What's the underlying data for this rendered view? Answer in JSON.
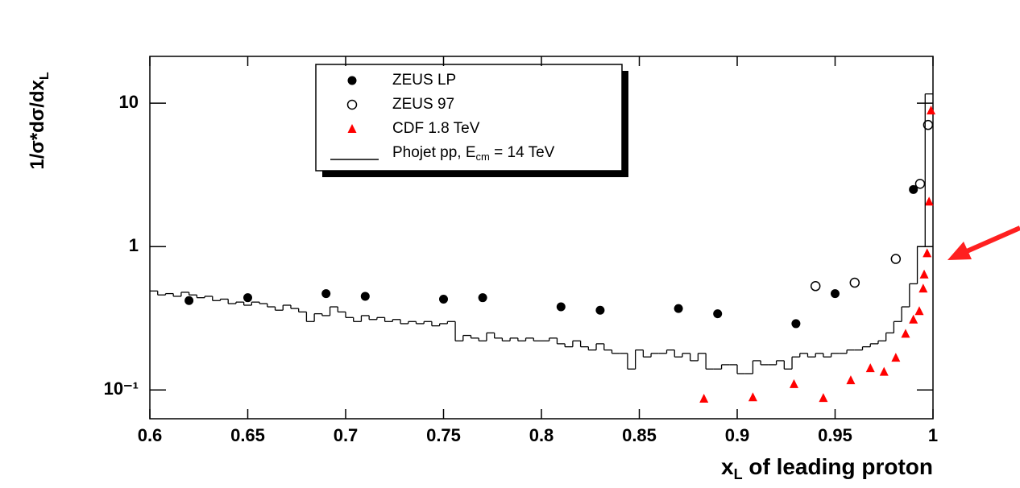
{
  "chart_data": {
    "type": "scatter",
    "x_label_parts": [
      "x",
      "L",
      " of leading proton"
    ],
    "y_label_parts": [
      "1/σ*dσ/dx",
      "L"
    ],
    "xlim": [
      0.6,
      1.0
    ],
    "xticks": [
      0.6,
      0.65,
      0.7,
      0.75,
      0.8,
      0.85,
      0.9,
      0.95,
      1
    ],
    "ylim": [
      0.063,
      21.2
    ],
    "yticks": [
      {
        "value": 0.1,
        "label": "10⁻¹"
      },
      1,
      10
    ],
    "log_y": true,
    "legend": "top-center",
    "series": [
      {
        "name": "ZEUS LP",
        "marker": "filled-circle",
        "color": "#000000",
        "x": [
          0.62,
          0.65,
          0.69,
          0.71,
          0.75,
          0.77,
          0.81,
          0.83,
          0.87,
          0.89,
          0.93,
          0.95,
          0.99
        ],
        "values": [
          0.42,
          0.44,
          0.47,
          0.45,
          0.43,
          0.44,
          0.38,
          0.36,
          0.37,
          0.34,
          0.29,
          0.47,
          2.5
        ]
      },
      {
        "name": "ZEUS 97",
        "marker": "open-circle",
        "color": "#000000",
        "x": [
          0.94,
          0.96,
          0.981,
          0.9934,
          0.9975
        ],
        "values": [
          0.53,
          0.56,
          0.82,
          2.74,
          7.05
        ]
      },
      {
        "name": "CDF 1.8 TeV",
        "marker": "triangle",
        "color": "#ff0000",
        "x": [
          0.883,
          0.908,
          0.929,
          0.944,
          0.958,
          0.968,
          0.975,
          0.981,
          0.986,
          0.99,
          0.993,
          0.995,
          0.9955,
          0.997,
          0.998,
          0.999
        ],
        "values": [
          0.087,
          0.089,
          0.11,
          0.088,
          0.117,
          0.142,
          0.134,
          0.168,
          0.247,
          0.31,
          0.355,
          0.51,
          0.64,
          0.9,
          2.06,
          8.9
        ]
      },
      {
        "name_parts": [
          "Phojet pp, E",
          "cm",
          " = 14 TeV"
        ],
        "marker": "step",
        "color": "#000000",
        "bins": [
          0.6,
          0.604,
          0.608,
          0.612,
          0.616,
          0.62,
          0.624,
          0.628,
          0.632,
          0.636,
          0.64,
          0.644,
          0.648,
          0.652,
          0.656,
          0.66,
          0.664,
          0.668,
          0.672,
          0.676,
          0.68,
          0.684,
          0.688,
          0.692,
          0.696,
          0.7,
          0.704,
          0.708,
          0.712,
          0.716,
          0.72,
          0.724,
          0.728,
          0.732,
          0.736,
          0.74,
          0.744,
          0.748,
          0.752,
          0.756,
          0.76,
          0.764,
          0.768,
          0.772,
          0.776,
          0.78,
          0.784,
          0.788,
          0.792,
          0.796,
          0.8,
          0.804,
          0.808,
          0.812,
          0.816,
          0.82,
          0.824,
          0.828,
          0.832,
          0.836,
          0.84,
          0.844,
          0.848,
          0.852,
          0.856,
          0.86,
          0.864,
          0.868,
          0.872,
          0.876,
          0.88,
          0.884,
          0.888,
          0.892,
          0.896,
          0.9,
          0.904,
          0.908,
          0.912,
          0.916,
          0.92,
          0.924,
          0.928,
          0.932,
          0.936,
          0.94,
          0.944,
          0.948,
          0.952,
          0.956,
          0.96,
          0.964,
          0.968,
          0.972,
          0.976,
          0.98,
          0.984,
          0.988,
          0.992,
          0.996,
          1.0
        ],
        "values": [
          0.49,
          0.46,
          0.47,
          0.45,
          0.48,
          0.46,
          0.44,
          0.45,
          0.42,
          0.43,
          0.4,
          0.41,
          0.39,
          0.41,
          0.4,
          0.38,
          0.36,
          0.39,
          0.37,
          0.35,
          0.3,
          0.34,
          0.33,
          0.38,
          0.35,
          0.32,
          0.3,
          0.33,
          0.31,
          0.32,
          0.3,
          0.31,
          0.29,
          0.3,
          0.29,
          0.3,
          0.28,
          0.29,
          0.3,
          0.22,
          0.24,
          0.23,
          0.22,
          0.25,
          0.23,
          0.22,
          0.23,
          0.22,
          0.23,
          0.22,
          0.22,
          0.23,
          0.21,
          0.2,
          0.22,
          0.2,
          0.19,
          0.21,
          0.19,
          0.18,
          0.18,
          0.14,
          0.19,
          0.17,
          0.18,
          0.18,
          0.19,
          0.17,
          0.18,
          0.16,
          0.18,
          0.14,
          0.14,
          0.15,
          0.15,
          0.13,
          0.13,
          0.16,
          0.15,
          0.15,
          0.16,
          0.14,
          0.17,
          0.18,
          0.17,
          0.18,
          0.17,
          0.18,
          0.18,
          0.19,
          0.19,
          0.2,
          0.21,
          0.22,
          0.25,
          0.3,
          0.38,
          0.55,
          1.0,
          11.6
        ]
      }
    ]
  }
}
